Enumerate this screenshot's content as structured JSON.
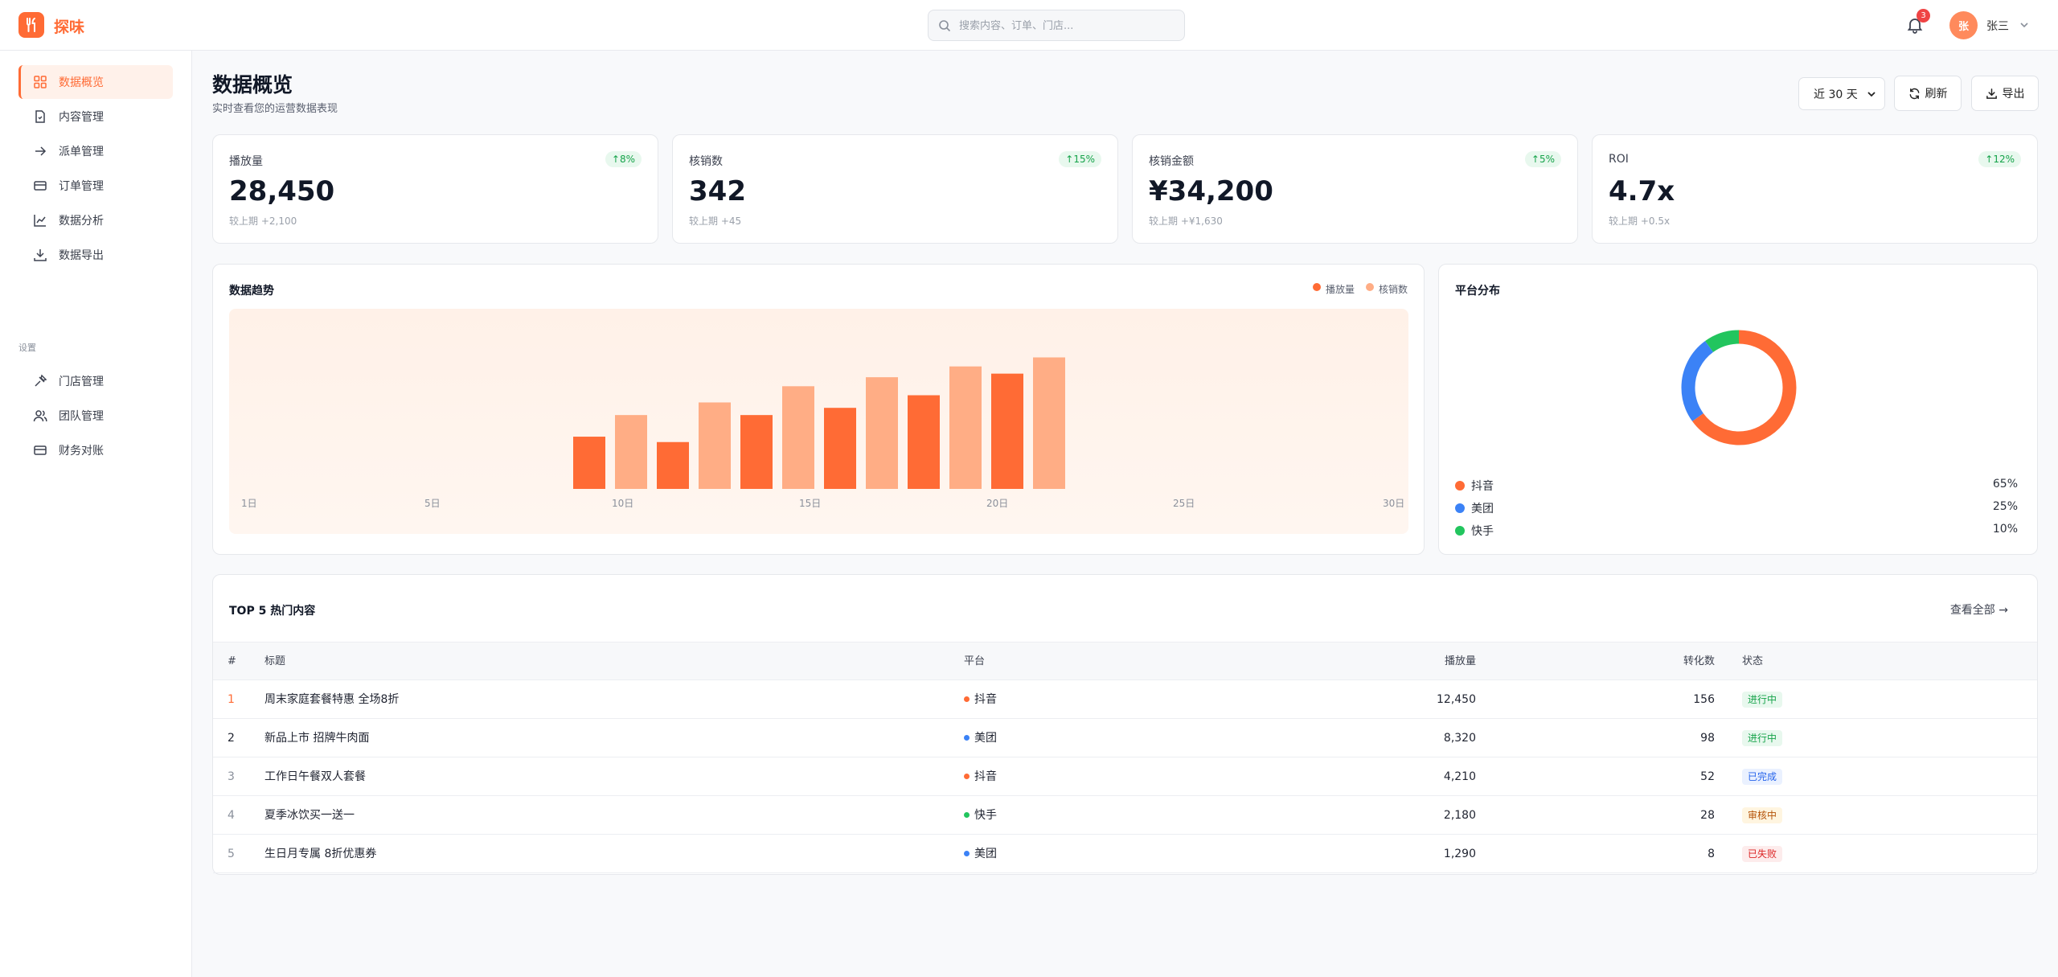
{
  "app": {
    "name": "探味"
  },
  "search": {
    "placeholder": "搜索内容、订单、门店..."
  },
  "header": {
    "notifications": "3",
    "avatar_initial": "张",
    "user_name": "张三"
  },
  "sidebar": {
    "items": [
      {
        "label": "数据概览",
        "icon": "dashboard-grid-icon"
      },
      {
        "label": "内容管理",
        "icon": "document-icon"
      },
      {
        "label": "派单管理",
        "icon": "arrow-right-icon"
      },
      {
        "label": "订单管理",
        "icon": "card-icon"
      },
      {
        "label": "数据分析",
        "icon": "line-chart-icon"
      },
      {
        "label": "数据导出",
        "icon": "download-icon"
      }
    ],
    "section_label": "设置",
    "settings_items": [
      {
        "label": "门店管理",
        "icon": "store-icon"
      },
      {
        "label": "团队管理",
        "icon": "team-icon"
      },
      {
        "label": "财务对账",
        "icon": "wallet-icon"
      }
    ]
  },
  "page": {
    "title": "数据概览",
    "subtitle": "实时查看您的运营数据表现",
    "range_selected": "近 30 天",
    "refresh_label": "刷新",
    "export_label": "导出"
  },
  "stats": [
    {
      "label": "播放量",
      "change": "↑8%",
      "value": "28,450",
      "compare": "较上期 +2,100"
    },
    {
      "label": "核销数",
      "change": "↑15%",
      "value": "342",
      "compare": "较上期 +45"
    },
    {
      "label": "核销金额",
      "change": "↑5%",
      "value": "¥34,200",
      "compare": "较上期 +¥1,630"
    },
    {
      "label": "ROI",
      "change": "↑12%",
      "value": "4.7x",
      "compare": "较上期 +0.5x"
    }
  ],
  "trend": {
    "title": "数据趋势",
    "legend": [
      {
        "name": "播放量",
        "color": "#ff6b35"
      },
      {
        "name": "核销数",
        "color": "#ffad85"
      }
    ]
  },
  "chart_data": {
    "type": "bar",
    "x_ticks": [
      "1日",
      "5日",
      "10日",
      "15日",
      "20日",
      "25日",
      "30日"
    ],
    "series": [
      {
        "name": "播放量",
        "color": "#ff6b35",
        "values": [
          29,
          26,
          41,
          45,
          52,
          64
        ]
      },
      {
        "name": "核销数",
        "color": "#ffad85",
        "values": [
          41,
          48,
          57,
          62,
          68,
          73
        ]
      }
    ],
    "ylim": [
      0,
      100
    ]
  },
  "platform": {
    "title": "平台分布",
    "slices": [
      {
        "name": "抖音",
        "value": 65,
        "pct": "65%",
        "color": "#ff6b35"
      },
      {
        "name": "美团",
        "value": 25,
        "pct": "25%",
        "color": "#3b82f6"
      },
      {
        "name": "快手",
        "value": 10,
        "pct": "10%",
        "color": "#22c55e"
      }
    ]
  },
  "top5": {
    "title": "TOP 5 热门内容",
    "view_all": "查看全部 →",
    "columns": [
      "#",
      "标题",
      "平台",
      "播放量",
      "转化数",
      "状态"
    ],
    "rows": [
      {
        "rank": "1",
        "title": "周末家庭套餐特惠 全场8折",
        "platform": "抖音",
        "platform_color": "#ff6b35",
        "plays": "12,450",
        "conversions": "156",
        "status": "进行中",
        "status_bg": "#e8f8ee",
        "status_fg": "#16a34a"
      },
      {
        "rank": "2",
        "title": "新品上市 招牌牛肉面",
        "platform": "美团",
        "platform_color": "#3b82f6",
        "plays": "8,320",
        "conversions": "98",
        "status": "进行中",
        "status_bg": "#e8f8ee",
        "status_fg": "#16a34a"
      },
      {
        "rank": "3",
        "title": "工作日午餐双人套餐",
        "platform": "抖音",
        "platform_color": "#ff6b35",
        "plays": "4,210",
        "conversions": "52",
        "status": "已完成",
        "status_bg": "#eaf1ff",
        "status_fg": "#2563eb"
      },
      {
        "rank": "4",
        "title": "夏季冰饮买一送一",
        "platform": "快手",
        "platform_color": "#22c55e",
        "plays": "2,180",
        "conversions": "28",
        "status": "审核中",
        "status_bg": "#fff5e0",
        "status_fg": "#b45309"
      },
      {
        "rank": "5",
        "title": "生日月专属 8折优惠券",
        "platform": "美团",
        "platform_color": "#3b82f6",
        "plays": "1,290",
        "conversions": "8",
        "status": "已失败",
        "status_bg": "#fdecec",
        "status_fg": "#dc2626"
      }
    ]
  }
}
